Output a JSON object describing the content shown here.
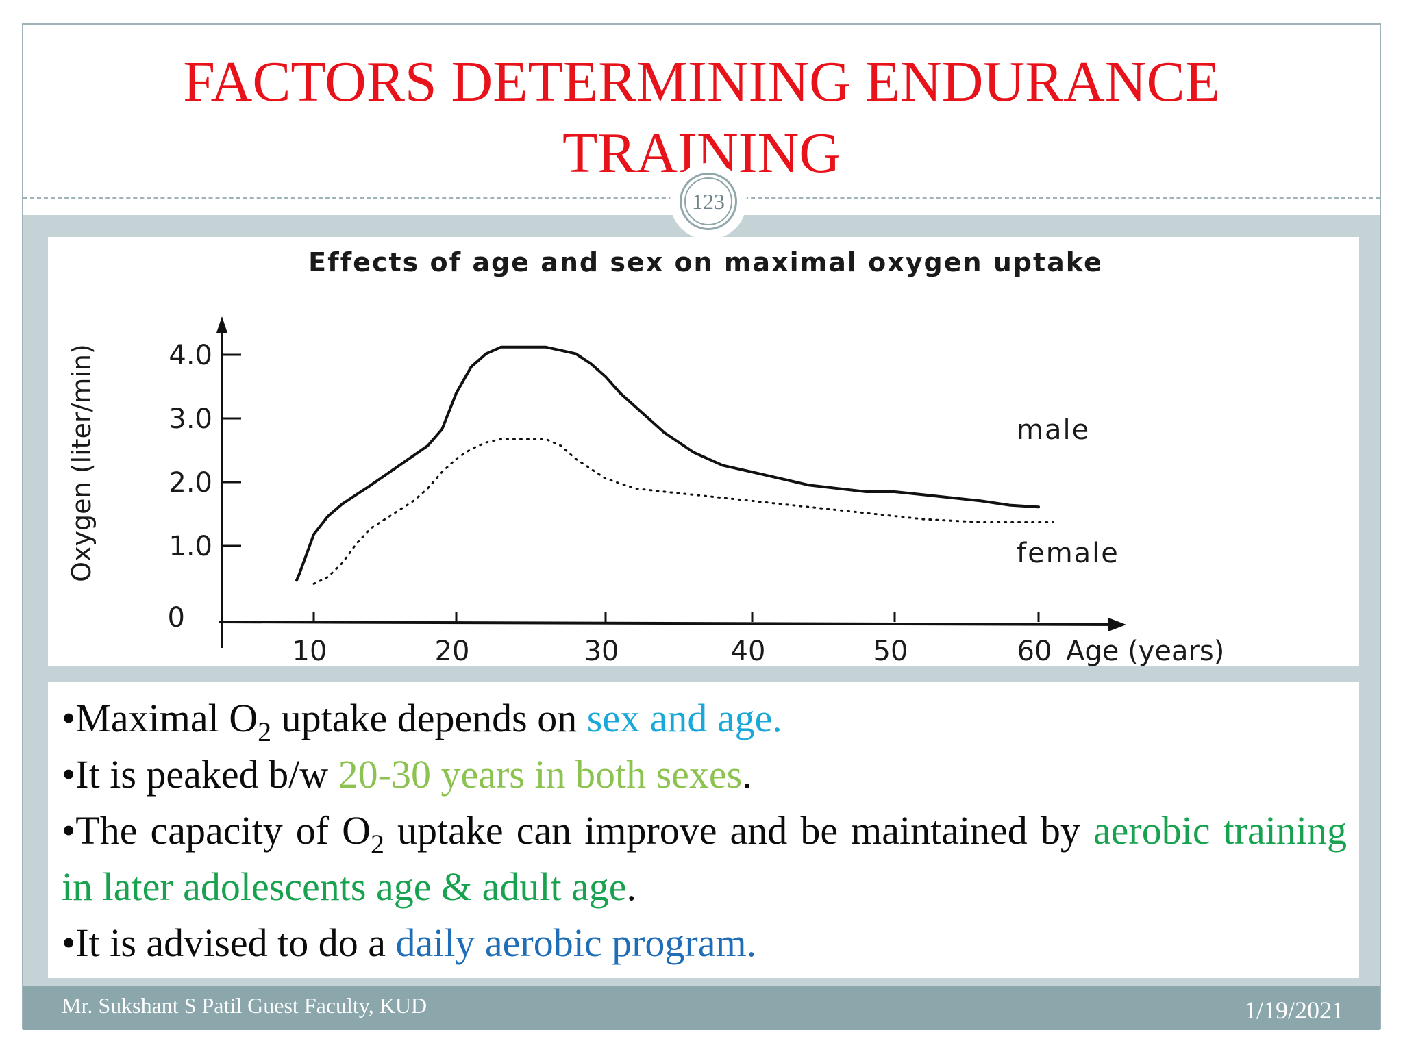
{
  "slide": {
    "title": "FACTORS DETERMINING ENDURANCE TRAINING",
    "slide_number": "123",
    "footer_left": "Mr. Sukshant S Patil Guest Faculty, KUD",
    "footer_right": "1/19/2021"
  },
  "bullets": [
    {
      "parts": [
        {
          "text": "•Maximal O",
          "style": "plain"
        },
        {
          "text": "2",
          "style": "sub"
        },
        {
          "text": " uptake depends on ",
          "style": "plain"
        },
        {
          "text": "sex and age.",
          "style": "cyan"
        }
      ]
    },
    {
      "parts": [
        {
          "text": "•It is peaked  b/w  ",
          "style": "plain"
        },
        {
          "text": "20-30 years in both sexes",
          "style": "lightgreen"
        },
        {
          "text": ".",
          "style": "plain"
        }
      ]
    },
    {
      "justify": true,
      "parts": [
        {
          "text": "•The capacity of O",
          "style": "plain"
        },
        {
          "text": "2",
          "style": "sub"
        },
        {
          "text": "  uptake can improve and  be maintained by ",
          "style": "plain"
        },
        {
          "text": "aerobic training in later adolescents age & adult age",
          "style": "green"
        },
        {
          "text": ".",
          "style": "plain"
        }
      ]
    },
    {
      "parts": [
        {
          "text": "•It is advised to do a ",
          "style": "plain"
        },
        {
          "text": "daily aerobic program.",
          "style": "blue"
        }
      ]
    }
  ],
  "colors": {
    "title": "#e8121a",
    "sex_and_age": "#1aa7d9",
    "peak_range": "#8cc24f",
    "aerobic_training": "#18a14e",
    "daily_program": "#1f6db6",
    "footer_band": "#8ba7ab",
    "body_band": "#c5d3d6"
  },
  "chart_data": {
    "type": "line",
    "title": "Effects of age and sex on maximal oxygen uptake",
    "xlabel": "Age (years)",
    "ylabel": "Oxygen (liter/min)",
    "x_ticks": [
      10,
      20,
      30,
      40,
      50,
      60
    ],
    "y_ticks": [
      {
        "value": 0,
        "label": "0"
      },
      {
        "value": 1.0,
        "label": "1.0"
      },
      {
        "value": 2.0,
        "label": "2.0"
      },
      {
        "value": 3.0,
        "label": "3.0"
      },
      {
        "value": 4.0,
        "label": "4.0"
      }
    ],
    "xlim": [
      3.5,
      66
    ],
    "ylim": [
      -0.1,
      4.5
    ],
    "grid": false,
    "series": [
      {
        "name": "male",
        "line_style": "solid",
        "x": [
          8.8,
          9,
          10,
          11,
          12,
          14,
          16,
          18,
          19,
          20,
          21,
          22,
          23,
          24,
          26,
          27,
          28,
          29,
          30,
          31,
          32,
          33,
          34,
          35,
          36,
          38,
          40,
          42,
          44,
          46,
          48,
          50,
          52,
          54,
          56,
          58,
          60
        ],
        "y": [
          0.6,
          0.7,
          1.3,
          1.6,
          1.8,
          2.1,
          2.4,
          2.7,
          2.95,
          3.5,
          3.9,
          4.1,
          4.2,
          4.2,
          4.2,
          4.15,
          4.1,
          3.95,
          3.75,
          3.5,
          3.3,
          3.1,
          2.9,
          2.75,
          2.6,
          2.4,
          2.3,
          2.2,
          2.1,
          2.05,
          2.0,
          2.0,
          1.95,
          1.9,
          1.85,
          1.78,
          1.75
        ]
      },
      {
        "name": "female",
        "line_style": "dotted",
        "x": [
          10,
          11,
          12,
          13,
          14,
          15,
          16,
          17,
          18,
          19,
          20,
          21,
          22,
          23,
          26,
          27,
          28,
          30,
          32,
          34,
          36,
          38,
          40,
          44,
          48,
          52,
          56,
          60,
          61
        ],
        "y": [
          0.55,
          0.65,
          0.85,
          1.15,
          1.4,
          1.55,
          1.7,
          1.85,
          2.05,
          2.3,
          2.5,
          2.65,
          2.75,
          2.8,
          2.8,
          2.7,
          2.5,
          2.2,
          2.05,
          2.0,
          1.95,
          1.9,
          1.85,
          1.75,
          1.65,
          1.55,
          1.5,
          1.5,
          1.5
        ]
      }
    ],
    "annotations": [
      {
        "text": "male",
        "x": 58,
        "y": 2.95
      },
      {
        "text": "female",
        "x": 58,
        "y": 1.0
      }
    ]
  }
}
